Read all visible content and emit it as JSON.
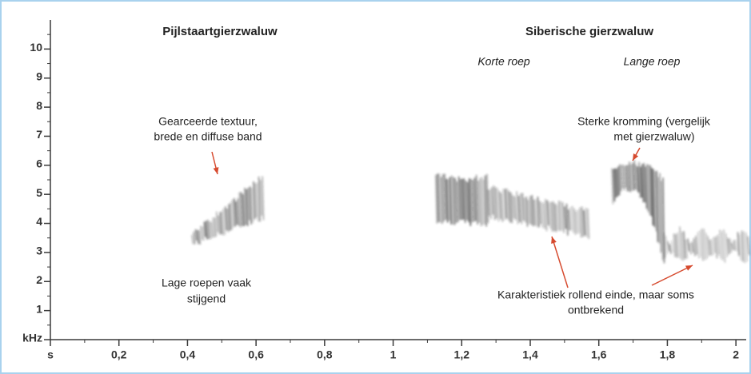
{
  "chart_data": {
    "type": "spectrogram",
    "titles": [
      "Pijlstaartgierzwaluw",
      "Siberische gierzwaluw"
    ],
    "subtitles": [
      "Korte roep",
      "Lange roep"
    ],
    "annotations": [
      [
        "Gearceerde textuur,",
        "brede en diffuse band"
      ],
      [
        "Sterke kromming (vergelijk",
        "met gierzwaluw)"
      ],
      [
        "Lage roepen vaak",
        "stijgend"
      ],
      [
        "Karakteristiek rollend einde, maar soms",
        "ontbrekend"
      ]
    ],
    "xlim": [
      0,
      2.03
    ],
    "xticks": [
      {
        "value": 0,
        "label": "s"
      },
      {
        "value": 0.2,
        "label": "0,2"
      },
      {
        "value": 0.4,
        "label": "0,4"
      },
      {
        "value": 0.6,
        "label": "0,6"
      },
      {
        "value": 0.8,
        "label": "0,8"
      },
      1,
      {
        "value": 1.2,
        "label": "1,2"
      },
      {
        "value": 1.4,
        "label": "1,4"
      },
      {
        "value": 1.6,
        "label": "1,6"
      },
      {
        "value": 1.8,
        "label": "1,8"
      },
      2
    ],
    "xminorticks": [
      0.1,
      0.3,
      0.5,
      0.7,
      0.9,
      1.1,
      1.3,
      1.5,
      1.7,
      1.9
    ],
    "ylim": [
      0,
      11
    ],
    "yticks": [
      {
        "value": 0,
        "label": "kHz"
      },
      1,
      2,
      3,
      4,
      5,
      6,
      7,
      8,
      9,
      10
    ],
    "yminorticks": [
      0.5,
      1.5,
      2.5,
      3.5,
      4.5,
      5.5,
      6.5,
      7.5,
      8.5,
      9.5,
      10.5
    ],
    "axis_color": "#3a3a3a",
    "arrow_color": "#d64a2e"
  }
}
